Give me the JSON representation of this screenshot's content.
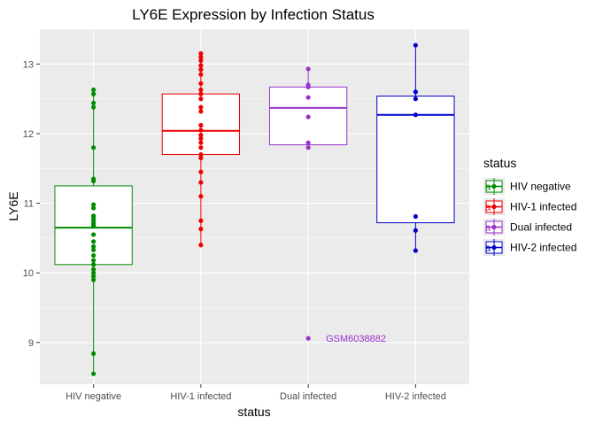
{
  "chart_data": {
    "type": "boxplot",
    "title": "LY6E Expression by Infection Status",
    "xlabel": "status",
    "ylabel": "LY6E",
    "ylim": [
      8.4,
      13.5
    ],
    "yticks": [
      9,
      10,
      11,
      12,
      13
    ],
    "categories": [
      "HIV negative",
      "HIV-1 infected",
      "Dual infected",
      "HIV-2 infected"
    ],
    "legend": {
      "title": "status",
      "position": "right",
      "key_glyph": "a",
      "entries": [
        "HIV negative",
        "HIV-1 infected",
        "Dual infected",
        "HIV-2 infected"
      ]
    },
    "grid": true,
    "background": "#ebebeb",
    "series": [
      {
        "category": "HIV negative",
        "color": "#008b00",
        "box": {
          "q1": 10.12,
          "median": 10.65,
          "q3": 11.25,
          "whisker_low": 8.55,
          "whisker_high": 12.63
        },
        "points": [
          12.63,
          12.57,
          12.44,
          12.38,
          11.8,
          11.35,
          11.32,
          10.98,
          10.93,
          10.82,
          10.8,
          10.76,
          10.72,
          10.7,
          10.68,
          10.55,
          10.45,
          10.38,
          10.33,
          10.25,
          10.18,
          10.12,
          10.05,
          10.0,
          9.95,
          9.9,
          8.84,
          8.55
        ]
      },
      {
        "category": "HIV-1 infected",
        "color": "#ee0000",
        "box": {
          "q1": 11.7,
          "median": 12.04,
          "q3": 12.57,
          "whisker_low": 10.4,
          "whisker_high": 13.15
        },
        "points": [
          13.15,
          13.1,
          13.05,
          12.98,
          12.92,
          12.85,
          12.72,
          12.63,
          12.57,
          12.5,
          12.38,
          12.32,
          12.12,
          12.05,
          11.98,
          11.93,
          11.87,
          11.8,
          11.7,
          11.65,
          11.45,
          11.3,
          11.1,
          10.75,
          10.63,
          10.4
        ]
      },
      {
        "category": "Dual infected",
        "color": "#9a32cd",
        "box": {
          "q1": 11.84,
          "median": 12.37,
          "q3": 12.67,
          "whisker_low": 11.8,
          "whisker_high": 12.93
        },
        "points": [
          12.93,
          12.7,
          12.67,
          12.52,
          12.24,
          11.87,
          11.8,
          9.06
        ],
        "outliers": [
          {
            "y": 9.06,
            "label": "GSM6038882"
          }
        ]
      },
      {
        "category": "HIV-2 infected",
        "color": "#0000cd",
        "box": {
          "q1": 10.72,
          "median": 12.27,
          "q3": 12.54,
          "whisker_low": 10.32,
          "whisker_high": 13.27
        },
        "points": [
          13.27,
          12.6,
          12.5,
          12.27,
          10.81,
          10.61,
          10.32
        ]
      }
    ]
  }
}
